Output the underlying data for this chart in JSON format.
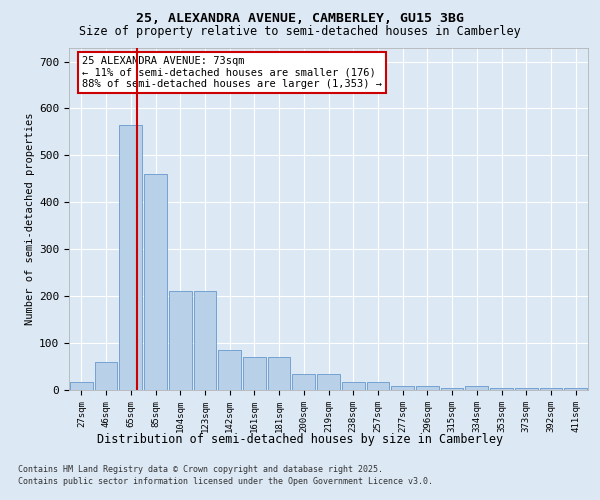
{
  "title1": "25, ALEXANDRA AVENUE, CAMBERLEY, GU15 3BG",
  "title2": "Size of property relative to semi-detached houses in Camberley",
  "xlabel": "Distribution of semi-detached houses by size in Camberley",
  "ylabel": "Number of semi-detached properties",
  "categories": [
    "27sqm",
    "46sqm",
    "65sqm",
    "85sqm",
    "104sqm",
    "123sqm",
    "142sqm",
    "161sqm",
    "181sqm",
    "200sqm",
    "219sqm",
    "238sqm",
    "257sqm",
    "277sqm",
    "296sqm",
    "315sqm",
    "334sqm",
    "353sqm",
    "373sqm",
    "392sqm",
    "411sqm"
  ],
  "values": [
    18,
    60,
    565,
    460,
    210,
    210,
    85,
    70,
    70,
    35,
    35,
    18,
    18,
    9,
    9,
    4,
    9,
    4,
    4,
    4,
    4
  ],
  "bar_color": "#b8d0e8",
  "bar_edge_color": "#6699cc",
  "property_line_x": 2.25,
  "annotation_text": "25 ALEXANDRA AVENUE: 73sqm\n← 11% of semi-detached houses are smaller (176)\n88% of semi-detached houses are larger (1,353) →",
  "annotation_box_color": "#ffffff",
  "annotation_box_edge": "#cc0000",
  "red_line_color": "#cc0000",
  "ylim": [
    0,
    730
  ],
  "yticks": [
    0,
    100,
    200,
    300,
    400,
    500,
    600,
    700
  ],
  "bg_color": "#dce8f4",
  "grid_color": "#ffffff",
  "footer1": "Contains HM Land Registry data © Crown copyright and database right 2025.",
  "footer2": "Contains public sector information licensed under the Open Government Licence v3.0."
}
